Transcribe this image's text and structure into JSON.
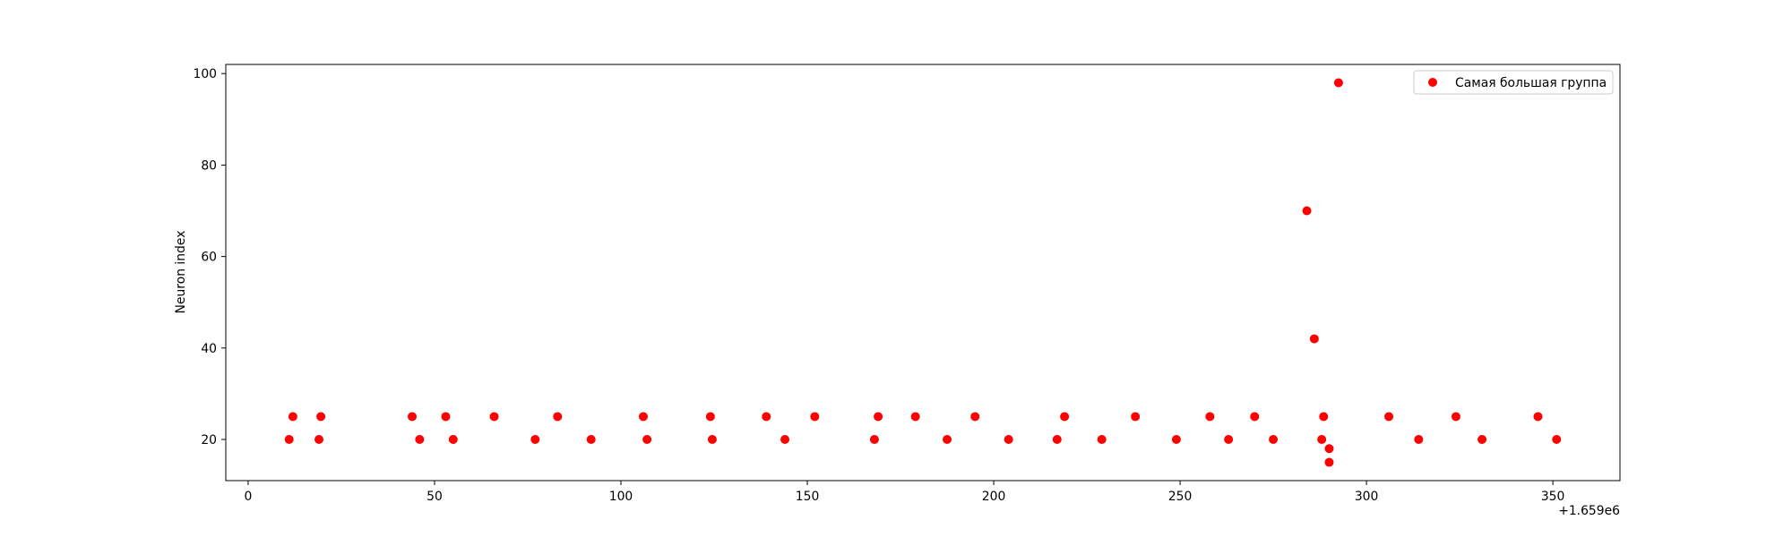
{
  "chart_data": {
    "type": "scatter",
    "title": "",
    "xlabel": "",
    "ylabel": "Neuron index",
    "x_offset_label": "+1.659e6",
    "xlim": [
      -6,
      368
    ],
    "ylim": [
      11,
      102
    ],
    "xticks": [
      0,
      50,
      100,
      150,
      200,
      250,
      300,
      350
    ],
    "yticks": [
      20,
      40,
      60,
      80,
      100
    ],
    "grid": false,
    "legend_position": "top-right",
    "colors": {
      "series": "#ff0000",
      "axes": "#000000",
      "background": "#ffffff"
    },
    "series": [
      {
        "name": "Самая большая группа",
        "points": [
          [
            11,
            20
          ],
          [
            12,
            25
          ],
          [
            19,
            20
          ],
          [
            19.5,
            25
          ],
          [
            44,
            25
          ],
          [
            46,
            20
          ],
          [
            53,
            25
          ],
          [
            55,
            20
          ],
          [
            66,
            25
          ],
          [
            77,
            20
          ],
          [
            83,
            25
          ],
          [
            92,
            20
          ],
          [
            106,
            25
          ],
          [
            107,
            20
          ],
          [
            124,
            25
          ],
          [
            124.5,
            20
          ],
          [
            139,
            25
          ],
          [
            144,
            20
          ],
          [
            152,
            25
          ],
          [
            168,
            20
          ],
          [
            169,
            25
          ],
          [
            179,
            25
          ],
          [
            187.5,
            20
          ],
          [
            195,
            25
          ],
          [
            204,
            20
          ],
          [
            217,
            20
          ],
          [
            219,
            25
          ],
          [
            229,
            20
          ],
          [
            238,
            25
          ],
          [
            249,
            20
          ],
          [
            258,
            25
          ],
          [
            263,
            20
          ],
          [
            270,
            25
          ],
          [
            275,
            20
          ],
          [
            284,
            70
          ],
          [
            286,
            42
          ],
          [
            288,
            20
          ],
          [
            288.5,
            25
          ],
          [
            290,
            18
          ],
          [
            290,
            15
          ],
          [
            292.5,
            98
          ],
          [
            306,
            25
          ],
          [
            314,
            20
          ],
          [
            324,
            25
          ],
          [
            331,
            20
          ],
          [
            346,
            25
          ],
          [
            351,
            20
          ]
        ]
      }
    ]
  }
}
